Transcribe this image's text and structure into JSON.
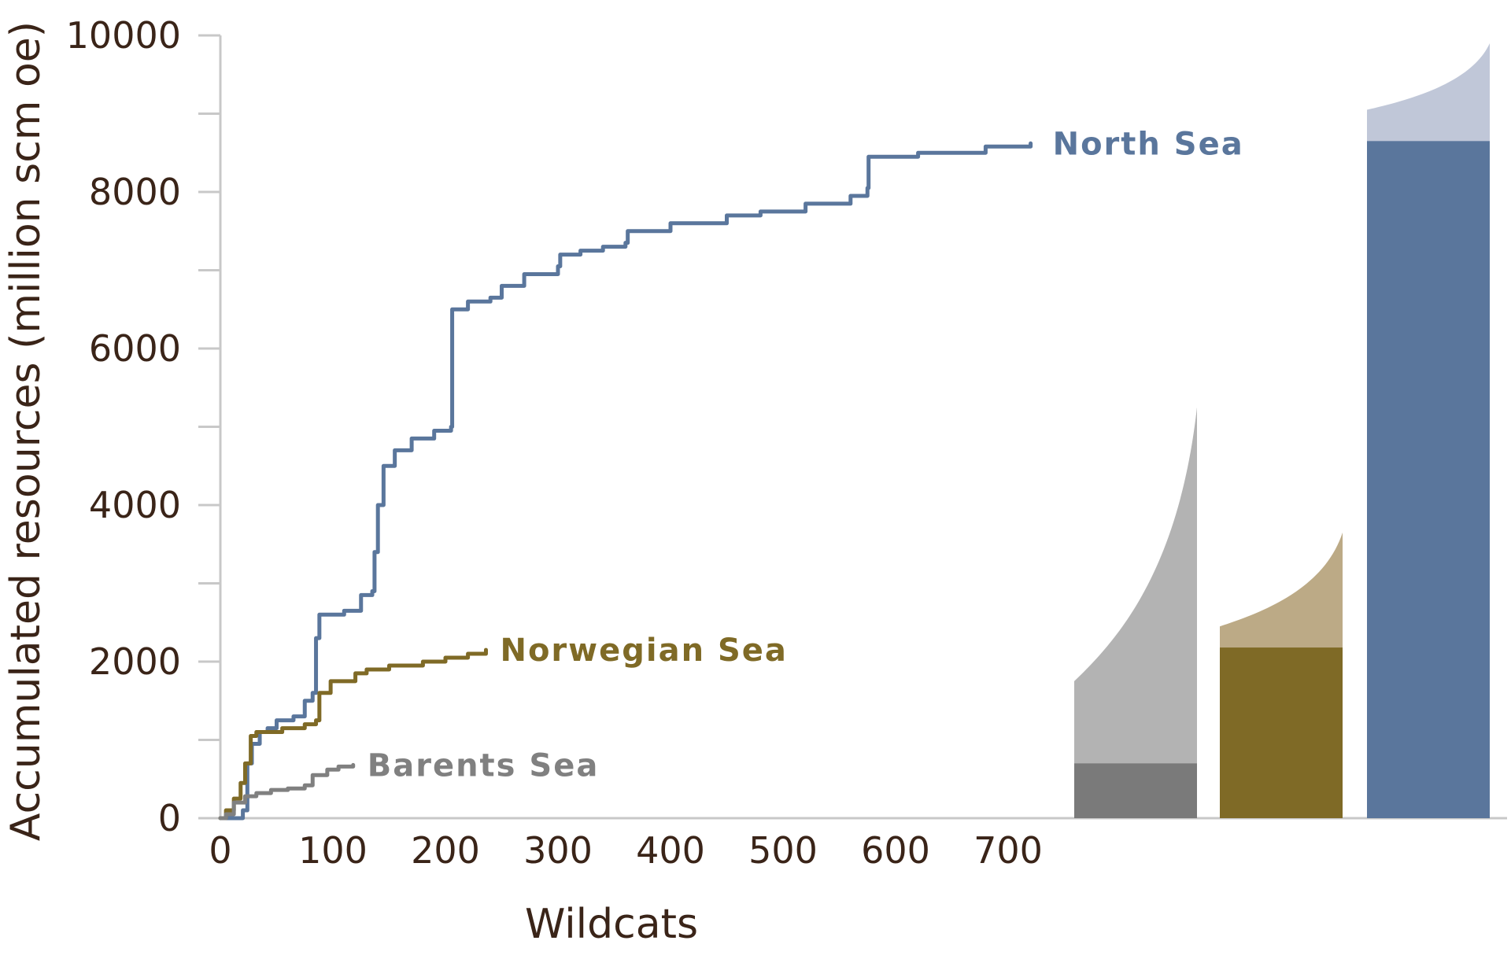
{
  "chart_data": {
    "type": "line",
    "xlabel": "Wildcats",
    "ylabel": "Accumulated resources (million scm oe)",
    "xlim": [
      0,
      760
    ],
    "ylim": [
      0,
      10000
    ],
    "x_ticks": [
      "0",
      "100",
      "200",
      "300",
      "400",
      "500",
      "600",
      "700"
    ],
    "y_ticks": [
      "0",
      "2000",
      "4000",
      "6000",
      "8000",
      "10000"
    ],
    "series": [
      {
        "name": "North Sea",
        "color": "#5a769c",
        "points": [
          [
            0,
            0
          ],
          [
            10,
            0
          ],
          [
            20,
            100
          ],
          [
            24,
            700
          ],
          [
            28,
            950
          ],
          [
            35,
            1100
          ],
          [
            42,
            1150
          ],
          [
            50,
            1250
          ],
          [
            65,
            1300
          ],
          [
            75,
            1500
          ],
          [
            82,
            1600
          ],
          [
            85,
            2300
          ],
          [
            88,
            2600
          ],
          [
            110,
            2650
          ],
          [
            125,
            2850
          ],
          [
            135,
            2900
          ],
          [
            137,
            3400
          ],
          [
            140,
            4000
          ],
          [
            145,
            4500
          ],
          [
            155,
            4700
          ],
          [
            170,
            4850
          ],
          [
            190,
            4950
          ],
          [
            205,
            5000
          ],
          [
            206,
            6500
          ],
          [
            220,
            6600
          ],
          [
            240,
            6650
          ],
          [
            250,
            6800
          ],
          [
            270,
            6950
          ],
          [
            300,
            7050
          ],
          [
            302,
            7200
          ],
          [
            320,
            7250
          ],
          [
            340,
            7300
          ],
          [
            360,
            7350
          ],
          [
            362,
            7500
          ],
          [
            400,
            7600
          ],
          [
            450,
            7700
          ],
          [
            480,
            7750
          ],
          [
            520,
            7850
          ],
          [
            560,
            7950
          ],
          [
            575,
            8050
          ],
          [
            576,
            8450
          ],
          [
            620,
            8500
          ],
          [
            680,
            8580
          ],
          [
            720,
            8620
          ]
        ]
      },
      {
        "name": "Norwegian Sea",
        "color": "#7f6a26",
        "points": [
          [
            0,
            0
          ],
          [
            5,
            100
          ],
          [
            12,
            250
          ],
          [
            18,
            450
          ],
          [
            22,
            700
          ],
          [
            27,
            1050
          ],
          [
            32,
            1100
          ],
          [
            55,
            1150
          ],
          [
            75,
            1200
          ],
          [
            85,
            1250
          ],
          [
            88,
            1600
          ],
          [
            98,
            1750
          ],
          [
            120,
            1850
          ],
          [
            130,
            1900
          ],
          [
            150,
            1950
          ],
          [
            180,
            2000
          ],
          [
            200,
            2050
          ],
          [
            220,
            2100
          ],
          [
            236,
            2150
          ]
        ]
      },
      {
        "name": "Barents Sea",
        "color": "#808080",
        "points": [
          [
            0,
            0
          ],
          [
            5,
            50
          ],
          [
            12,
            200
          ],
          [
            22,
            280
          ],
          [
            32,
            320
          ],
          [
            45,
            360
          ],
          [
            60,
            380
          ],
          [
            75,
            420
          ],
          [
            82,
            550
          ],
          [
            95,
            620
          ],
          [
            105,
            660
          ],
          [
            118,
            680
          ]
        ]
      }
    ],
    "summary_bars": [
      {
        "series": "Barents Sea",
        "discovered": 700,
        "undiscovered_range": [
          1750,
          5250
        ],
        "discovered_color": "#7a7a7a",
        "undiscovered_color": "#b3b3b3"
      },
      {
        "series": "Norwegian Sea",
        "discovered": 2180,
        "undiscovered_range": [
          2450,
          3650
        ],
        "discovered_color": "#7f6a26",
        "undiscovered_color": "#bcaa86"
      },
      {
        "series": "North Sea",
        "discovered": 8650,
        "undiscovered_range": [
          9050,
          9900
        ],
        "discovered_color": "#5a769c",
        "undiscovered_color": "#c0c7d8"
      }
    ]
  }
}
